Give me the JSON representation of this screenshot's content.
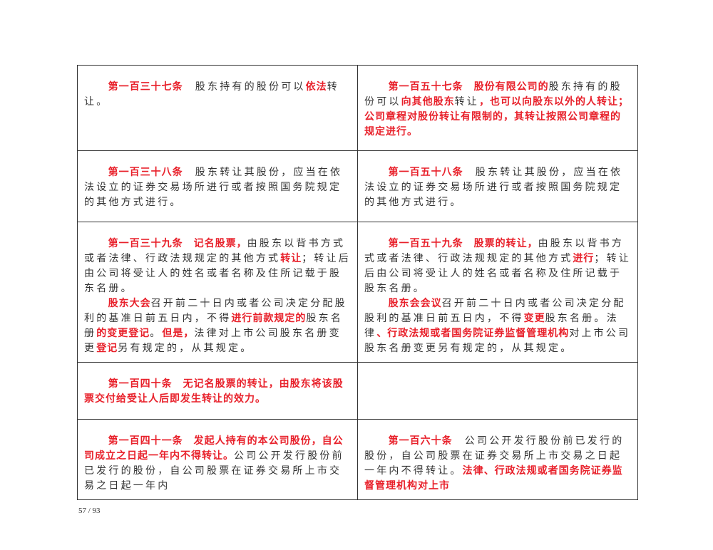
{
  "rows": [
    {
      "left": [
        [
          {
            "t": "第一百三十七条",
            "r": true
          },
          {
            "t": "　股东持有的股份可以"
          },
          {
            "t": "依法",
            "r": true
          },
          {
            "t": "转让。"
          }
        ]
      ],
      "right": [
        [
          {
            "t": "第一百五十七条　股份有限公司的",
            "r": true
          },
          {
            "t": "股东持有的股份可以"
          },
          {
            "t": "向其他股东",
            "r": true
          },
          {
            "t": "转让"
          },
          {
            "t": "，也可以向股东以外的人转让；公司章程对股份转让有限制的，其转让按照公司章程的规定进行。",
            "r": true
          }
        ]
      ]
    },
    {
      "left": [
        [
          {
            "t": "第一百三十八条",
            "r": true
          },
          {
            "t": "　股东转让其股份，应当在依法设立的证券交易场所进行或者按照国务院规定的其他方式进行。"
          }
        ]
      ],
      "right": [
        [
          {
            "t": "第一百五十八条",
            "r": true
          },
          {
            "t": "　股东转让其股份，应当在依法设立的证券交易场所进行或者按照国务院规定的其他方式进行。"
          }
        ]
      ]
    },
    {
      "left": [
        [
          {
            "t": "第一百三十九条　记名股票，",
            "r": true
          },
          {
            "t": "由股东以背书方式或者法律、行政法规规定的其他方式"
          },
          {
            "t": "转让",
            "r": true
          },
          {
            "t": "；转让后由公司将受让人的姓名或者名称及住所记载于股东名册。"
          }
        ],
        [
          {
            "t": "股东大会",
            "r": true
          },
          {
            "t": "召开前二十日内或者公司决定分配股利的基准日前五日内，不得"
          },
          {
            "t": "进行前款规定的",
            "r": true
          },
          {
            "t": "股东名册"
          },
          {
            "t": "的变更登记",
            "r": true
          },
          {
            "t": "。"
          },
          {
            "t": "但是，",
            "r": true
          },
          {
            "t": "法律对上市公司股东名册变更"
          },
          {
            "t": "登记",
            "r": true
          },
          {
            "t": "另有规定的，从其规定。"
          }
        ]
      ],
      "right": [
        [
          {
            "t": "第一百五十九条　股票的转让，",
            "r": true
          },
          {
            "t": "由股东以背书方式或者法律、行政法规规定的其他方式"
          },
          {
            "t": "进行",
            "r": true
          },
          {
            "t": "；转让后由公司将受让人的姓名或者名称及住所记载于股东名册。"
          }
        ],
        [
          {
            "t": "股东会会议",
            "r": true
          },
          {
            "t": "召开前二十日内或者公司决定分配股利的基准日前五日内，不得"
          },
          {
            "t": "变更",
            "r": true
          },
          {
            "t": "股东名册。法律"
          },
          {
            "t": "、行政法规或者国务院证券监督管理机构",
            "r": true
          },
          {
            "t": "对上市公司股东名册变更另有规定的，从其规定。"
          }
        ]
      ]
    },
    {
      "left": [
        [
          {
            "t": "第一百四十条　无记名股票的转让，由股东将该股票交付给受让人后即发生转让的效力。",
            "r": true
          }
        ]
      ],
      "right": []
    },
    {
      "left": [
        [
          {
            "t": "第一百四十一条　发起人持有的本公司股份，自公司成立之日起一年内不得转让。",
            "r": true
          },
          {
            "t": "公司公开发行股份前已发行的股份，自公司股票在证券交易所上市交易之日起一年内"
          }
        ]
      ],
      "right": [
        [
          {
            "t": "第一百六十条",
            "r": true
          },
          {
            "t": "　公司公开发行股份前已发行的股份，自公司股票在证券交易所上市交易之日起一年内不得转让。"
          },
          {
            "t": "法律、行政法规或者国务院证券监督管理机构对上市",
            "r": true
          }
        ]
      ]
    }
  ],
  "footer": {
    "page_number": "57 / 93"
  },
  "colors": {
    "highlight": "#e8202a",
    "text": "#333333"
  }
}
